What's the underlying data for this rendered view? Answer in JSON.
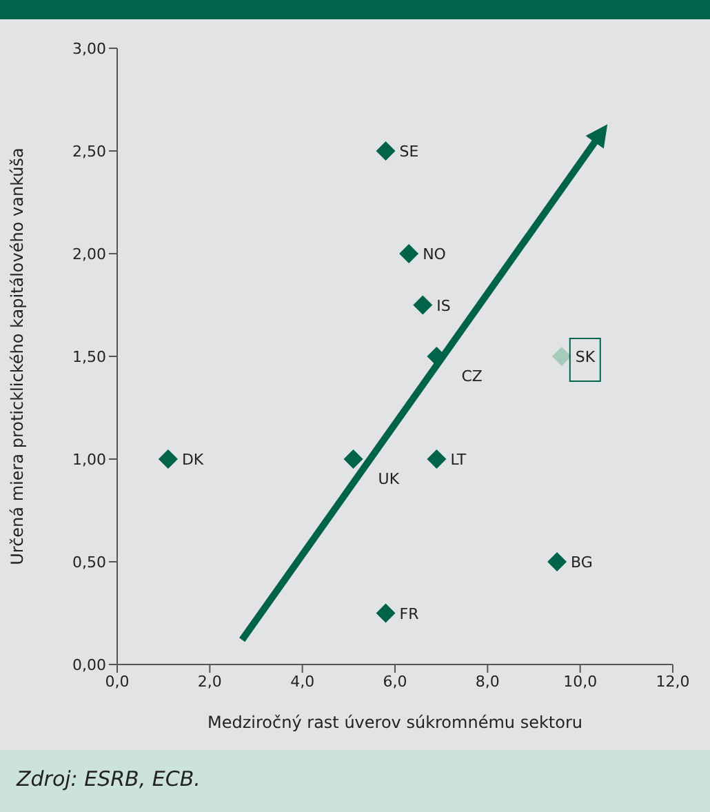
{
  "chart_data": {
    "type": "scatter",
    "xlabel": "Medziročný rast úverov súkromnému sektoru",
    "ylabel": "Určená miera proticklického kapitálového vankúša",
    "annotations": [
      "Zdroj: ESRB, ECB."
    ],
    "xlim": [
      0,
      12
    ],
    "xticks": [
      {
        "value": 0,
        "label": "0,0"
      },
      {
        "value": 2,
        "label": "2,0"
      },
      {
        "value": 4,
        "label": "4,0"
      },
      {
        "value": 6,
        "label": "6,0"
      },
      {
        "value": 8,
        "label": "8,0"
      },
      {
        "value": 10,
        "label": "10,0"
      },
      {
        "value": 12,
        "label": "12,0"
      }
    ],
    "ylim": [
      0,
      3
    ],
    "yticks": [
      {
        "value": 0,
        "label": "0,00"
      },
      {
        "value": 0.5,
        "label": "0,50"
      },
      {
        "value": 1,
        "label": "1,00"
      },
      {
        "value": 1.5,
        "label": "1,50"
      },
      {
        "value": 2,
        "label": "2,00"
      },
      {
        "value": 2.5,
        "label": "2,50"
      },
      {
        "value": 3,
        "label": "3,00"
      }
    ],
    "grid": false,
    "legend": false,
    "marker": "diamond",
    "series": [
      {
        "name": "SE",
        "color": "#00634a",
        "x": [
          5.8
        ],
        "values": [
          2.5
        ]
      },
      {
        "name": "NO",
        "color": "#00634a",
        "x": [
          6.3
        ],
        "values": [
          2.0
        ]
      },
      {
        "name": "IS",
        "color": "#00634a",
        "x": [
          6.6
        ],
        "values": [
          1.75
        ]
      },
      {
        "name": "CZ",
        "color": "#00634a",
        "x": [
          6.9
        ],
        "values": [
          1.5
        ]
      },
      {
        "name": "SK",
        "color": "#a6cbbb",
        "x": [
          9.6
        ],
        "values": [
          1.5
        ]
      },
      {
        "name": "DK",
        "color": "#00634a",
        "x": [
          1.1
        ],
        "values": [
          1.0
        ]
      },
      {
        "name": "UK",
        "color": "#00634a",
        "x": [
          5.1
        ],
        "values": [
          1.0
        ]
      },
      {
        "name": "LT",
        "color": "#00634a",
        "x": [
          6.9
        ],
        "values": [
          1.0
        ]
      },
      {
        "name": "BG",
        "color": "#00634a",
        "x": [
          9.5
        ],
        "values": [
          0.5
        ]
      },
      {
        "name": "FR",
        "color": "#00634a",
        "x": [
          5.8
        ],
        "values": [
          0.25
        ]
      }
    ]
  }
}
